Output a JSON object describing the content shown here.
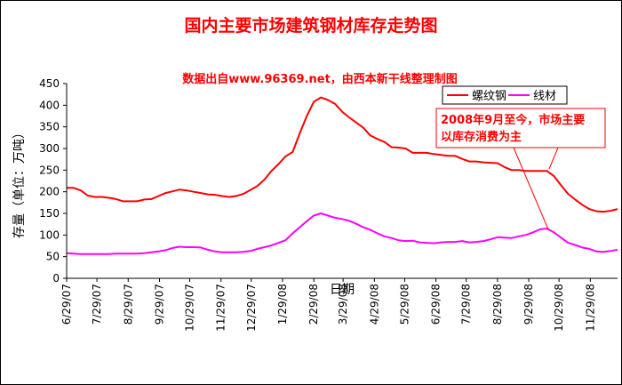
{
  "chart_data": {
    "type": "line",
    "title": "国内主要市场建筑钢材库存走势图",
    "subtitle": "数据出自www.96369.net，由西本新干线整理制图",
    "xlabel": "日期",
    "ylabel": "存量（单位：万吨）",
    "ylim": [
      0,
      450
    ],
    "yticks": [
      0,
      50,
      100,
      150,
      200,
      250,
      300,
      350,
      400,
      450
    ],
    "x_ticks": [
      "6/29/07",
      "7/29/07",
      "8/29/07",
      "9/29/07",
      "10/29/07",
      "11/29/07",
      "12/29/07",
      "1/29/08",
      "2/29/08",
      "3/29/08",
      "4/29/08",
      "5/29/08",
      "6/29/08",
      "7/29/08",
      "8/29/08",
      "9/29/08",
      "10/29/08",
      "11/29/08"
    ],
    "x_range": [
      "2007-06-29",
      "2008-12-26"
    ],
    "legend_position": "top-right",
    "grid": false,
    "series": [
      {
        "name": "螺纹钢",
        "color": "#ff0000",
        "points": [
          [
            "2007-06-29",
            209
          ],
          [
            "2007-07-06",
            209
          ],
          [
            "2007-07-13",
            203
          ],
          [
            "2007-07-20",
            191
          ],
          [
            "2007-07-27",
            188
          ],
          [
            "2007-08-03",
            188
          ],
          [
            "2007-08-10",
            186
          ],
          [
            "2007-08-17",
            183
          ],
          [
            "2007-08-24",
            178
          ],
          [
            "2007-08-31",
            178
          ],
          [
            "2007-09-07",
            178
          ],
          [
            "2007-09-14",
            182
          ],
          [
            "2007-09-21",
            183
          ],
          [
            "2007-09-28",
            190
          ],
          [
            "2007-10-05",
            197
          ],
          [
            "2007-10-12",
            201
          ],
          [
            "2007-10-19",
            205
          ],
          [
            "2007-10-26",
            203
          ],
          [
            "2007-11-02",
            200
          ],
          [
            "2007-11-09",
            197
          ],
          [
            "2007-11-16",
            194
          ],
          [
            "2007-11-23",
            193
          ],
          [
            "2007-11-30",
            190
          ],
          [
            "2007-12-07",
            188
          ],
          [
            "2007-12-14",
            190
          ],
          [
            "2007-12-21",
            195
          ],
          [
            "2007-12-28",
            204
          ],
          [
            "2008-01-04",
            213
          ],
          [
            "2008-01-11",
            228
          ],
          [
            "2008-01-18",
            248
          ],
          [
            "2008-01-25",
            264
          ],
          [
            "2008-02-01",
            282
          ],
          [
            "2008-02-08",
            292
          ],
          [
            "2008-02-15",
            335
          ],
          [
            "2008-02-22",
            375
          ],
          [
            "2008-02-29",
            408
          ],
          [
            "2008-03-07",
            418
          ],
          [
            "2008-03-14",
            412
          ],
          [
            "2008-03-21",
            403
          ],
          [
            "2008-03-28",
            385
          ],
          [
            "2008-04-04",
            372
          ],
          [
            "2008-04-11",
            360
          ],
          [
            "2008-04-18",
            348
          ],
          [
            "2008-04-25",
            330
          ],
          [
            "2008-05-02",
            322
          ],
          [
            "2008-05-09",
            315
          ],
          [
            "2008-05-16",
            303
          ],
          [
            "2008-05-23",
            302
          ],
          [
            "2008-05-30",
            300
          ],
          [
            "2008-06-06",
            290
          ],
          [
            "2008-06-13",
            290
          ],
          [
            "2008-06-20",
            290
          ],
          [
            "2008-06-27",
            287
          ],
          [
            "2008-07-04",
            285
          ],
          [
            "2008-07-11",
            283
          ],
          [
            "2008-07-18",
            283
          ],
          [
            "2008-07-25",
            276
          ],
          [
            "2008-08-01",
            270
          ],
          [
            "2008-08-08",
            270
          ],
          [
            "2008-08-15",
            268
          ],
          [
            "2008-08-22",
            267
          ],
          [
            "2008-08-29",
            266
          ],
          [
            "2008-09-05",
            257
          ],
          [
            "2008-09-12",
            250
          ],
          [
            "2008-09-19",
            250
          ],
          [
            "2008-09-26",
            248
          ],
          [
            "2008-10-03",
            248
          ],
          [
            "2008-10-10",
            248
          ],
          [
            "2008-10-17",
            248
          ],
          [
            "2008-10-24",
            236
          ],
          [
            "2008-10-31",
            215
          ],
          [
            "2008-11-07",
            195
          ],
          [
            "2008-11-14",
            182
          ],
          [
            "2008-11-21",
            170
          ],
          [
            "2008-11-28",
            160
          ],
          [
            "2008-12-05",
            155
          ],
          [
            "2008-12-12",
            154
          ],
          [
            "2008-12-19",
            156
          ],
          [
            "2008-12-26",
            160
          ]
        ]
      },
      {
        "name": "线材",
        "color": "#ff00ff",
        "points": [
          [
            "2007-06-29",
            58
          ],
          [
            "2007-07-06",
            57
          ],
          [
            "2007-07-13",
            56
          ],
          [
            "2007-07-20",
            56
          ],
          [
            "2007-07-27",
            56
          ],
          [
            "2007-08-03",
            56
          ],
          [
            "2007-08-10",
            56
          ],
          [
            "2007-08-17",
            57
          ],
          [
            "2007-08-24",
            57
          ],
          [
            "2007-08-31",
            57
          ],
          [
            "2007-09-07",
            57
          ],
          [
            "2007-09-14",
            58
          ],
          [
            "2007-09-21",
            60
          ],
          [
            "2007-09-28",
            62
          ],
          [
            "2007-10-05",
            65
          ],
          [
            "2007-10-12",
            70
          ],
          [
            "2007-10-19",
            73
          ],
          [
            "2007-10-26",
            72
          ],
          [
            "2007-11-02",
            72
          ],
          [
            "2007-11-09",
            71
          ],
          [
            "2007-11-16",
            66
          ],
          [
            "2007-11-23",
            62
          ],
          [
            "2007-11-30",
            60
          ],
          [
            "2007-12-07",
            60
          ],
          [
            "2007-12-14",
            60
          ],
          [
            "2007-12-21",
            61
          ],
          [
            "2007-12-28",
            63
          ],
          [
            "2008-01-04",
            68
          ],
          [
            "2008-01-11",
            72
          ],
          [
            "2008-01-18",
            76
          ],
          [
            "2008-01-25",
            82
          ],
          [
            "2008-02-01",
            88
          ],
          [
            "2008-02-08",
            104
          ],
          [
            "2008-02-15",
            118
          ],
          [
            "2008-02-22",
            132
          ],
          [
            "2008-02-29",
            145
          ],
          [
            "2008-03-07",
            150
          ],
          [
            "2008-03-14",
            145
          ],
          [
            "2008-03-21",
            140
          ],
          [
            "2008-03-28",
            137
          ],
          [
            "2008-04-04",
            133
          ],
          [
            "2008-04-11",
            126
          ],
          [
            "2008-04-18",
            118
          ],
          [
            "2008-04-25",
            112
          ],
          [
            "2008-05-02",
            104
          ],
          [
            "2008-05-09",
            97
          ],
          [
            "2008-05-16",
            93
          ],
          [
            "2008-05-23",
            88
          ],
          [
            "2008-05-30",
            86
          ],
          [
            "2008-06-06",
            87
          ],
          [
            "2008-06-13",
            83
          ],
          [
            "2008-06-20",
            82
          ],
          [
            "2008-06-27",
            81
          ],
          [
            "2008-07-04",
            83
          ],
          [
            "2008-07-11",
            84
          ],
          [
            "2008-07-18",
            84
          ],
          [
            "2008-07-25",
            86
          ],
          [
            "2008-08-01",
            83
          ],
          [
            "2008-08-08",
            84
          ],
          [
            "2008-08-15",
            86
          ],
          [
            "2008-08-22",
            90
          ],
          [
            "2008-08-29",
            95
          ],
          [
            "2008-09-05",
            94
          ],
          [
            "2008-09-12",
            93
          ],
          [
            "2008-09-19",
            97
          ],
          [
            "2008-09-26",
            100
          ],
          [
            "2008-10-03",
            106
          ],
          [
            "2008-10-10",
            113
          ],
          [
            "2008-10-17",
            115
          ],
          [
            "2008-10-24",
            106
          ],
          [
            "2008-10-31",
            94
          ],
          [
            "2008-11-07",
            82
          ],
          [
            "2008-11-14",
            77
          ],
          [
            "2008-11-21",
            71
          ],
          [
            "2008-11-28",
            68
          ],
          [
            "2008-12-05",
            62
          ],
          [
            "2008-12-12",
            61
          ],
          [
            "2008-12-19",
            63
          ],
          [
            "2008-12-26",
            66
          ]
        ]
      }
    ],
    "annotation": {
      "lines": [
        "2008年9月至今，市场主要",
        "以库存消费为主"
      ],
      "color": "#ff0000",
      "points_to": [
        [
          "2008-10-17",
          248
        ],
        [
          "2008-10-17",
          115
        ]
      ]
    }
  }
}
